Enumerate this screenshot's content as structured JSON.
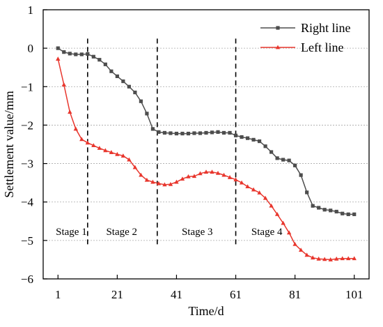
{
  "chart_data": {
    "type": "line",
    "xlabel": "Time/d",
    "ylabel": "Settlement value/mm",
    "xlim": [
      -4,
      106
    ],
    "ylim": [
      -6,
      1
    ],
    "xticks": [
      1,
      21,
      41,
      61,
      81,
      101
    ],
    "yticks": [
      1,
      0,
      -1,
      -2,
      -3,
      -4,
      -5,
      -6
    ],
    "tick_labels": {
      "x": [
        "1",
        "21",
        "41",
        "61",
        "81",
        "101"
      ],
      "y": [
        "1",
        "0",
        "−1",
        "−2",
        "−3",
        "−4",
        "−5",
        "−6"
      ]
    },
    "grid": "horizontal dotted",
    "legend_position": "top-right",
    "stage_dividers_x": [
      11,
      34.5,
      61
    ],
    "stage_labels": [
      {
        "text": "Stage 1",
        "x": 5.5
      },
      {
        "text": "Stage 2",
        "x": 22.5
      },
      {
        "text": "Stage 3",
        "x": 48
      },
      {
        "text": "Stage 4",
        "x": 71.5
      }
    ],
    "series": [
      {
        "name": "Right line",
        "color": "#4d4d4d",
        "marker": "square",
        "x": [
          1,
          3,
          5,
          7,
          9,
          11,
          13,
          15,
          17,
          19,
          21,
          23,
          25,
          27,
          29,
          31,
          33,
          35,
          37,
          39,
          41,
          43,
          45,
          47,
          49,
          51,
          53,
          55,
          57,
          59,
          61,
          63,
          65,
          67,
          69,
          71,
          73,
          75,
          77,
          79,
          81,
          83,
          85,
          87,
          89,
          91,
          93,
          95,
          97,
          99,
          101
        ],
        "values": [
          0,
          -0.1,
          -0.14,
          -0.16,
          -0.16,
          -0.15,
          -0.22,
          -0.3,
          -0.42,
          -0.6,
          -0.73,
          -0.86,
          -1.0,
          -1.15,
          -1.38,
          -1.7,
          -2.1,
          -2.18,
          -2.2,
          -2.21,
          -2.22,
          -2.22,
          -2.22,
          -2.21,
          -2.21,
          -2.2,
          -2.19,
          -2.18,
          -2.2,
          -2.2,
          -2.27,
          -2.31,
          -2.34,
          -2.38,
          -2.42,
          -2.55,
          -2.7,
          -2.86,
          -2.9,
          -2.92,
          -3.05,
          -3.3,
          -3.75,
          -4.1,
          -4.15,
          -4.2,
          -4.22,
          -4.25,
          -4.3,
          -4.32,
          -4.32
        ]
      },
      {
        "name": "Left line",
        "color": "#e8362d",
        "marker": "triangle",
        "x": [
          1,
          3,
          5,
          7,
          9,
          11,
          13,
          15,
          17,
          19,
          21,
          23,
          25,
          27,
          29,
          31,
          33,
          35,
          37,
          39,
          41,
          43,
          45,
          47,
          49,
          51,
          53,
          55,
          57,
          59,
          61,
          63,
          65,
          67,
          69,
          71,
          73,
          75,
          77,
          79,
          81,
          83,
          85,
          87,
          89,
          91,
          93,
          95,
          97,
          99,
          101
        ],
        "values": [
          -0.28,
          -0.95,
          -1.66,
          -2.1,
          -2.37,
          -2.46,
          -2.53,
          -2.6,
          -2.66,
          -2.71,
          -2.76,
          -2.8,
          -2.9,
          -3.1,
          -3.3,
          -3.43,
          -3.48,
          -3.52,
          -3.55,
          -3.54,
          -3.48,
          -3.4,
          -3.34,
          -3.33,
          -3.26,
          -3.22,
          -3.22,
          -3.25,
          -3.3,
          -3.36,
          -3.42,
          -3.5,
          -3.6,
          -3.68,
          -3.76,
          -3.9,
          -4.1,
          -4.32,
          -4.55,
          -4.8,
          -5.1,
          -5.25,
          -5.38,
          -5.45,
          -5.48,
          -5.49,
          -5.5,
          -5.48,
          -5.47,
          -5.47,
          -5.47
        ]
      }
    ]
  }
}
